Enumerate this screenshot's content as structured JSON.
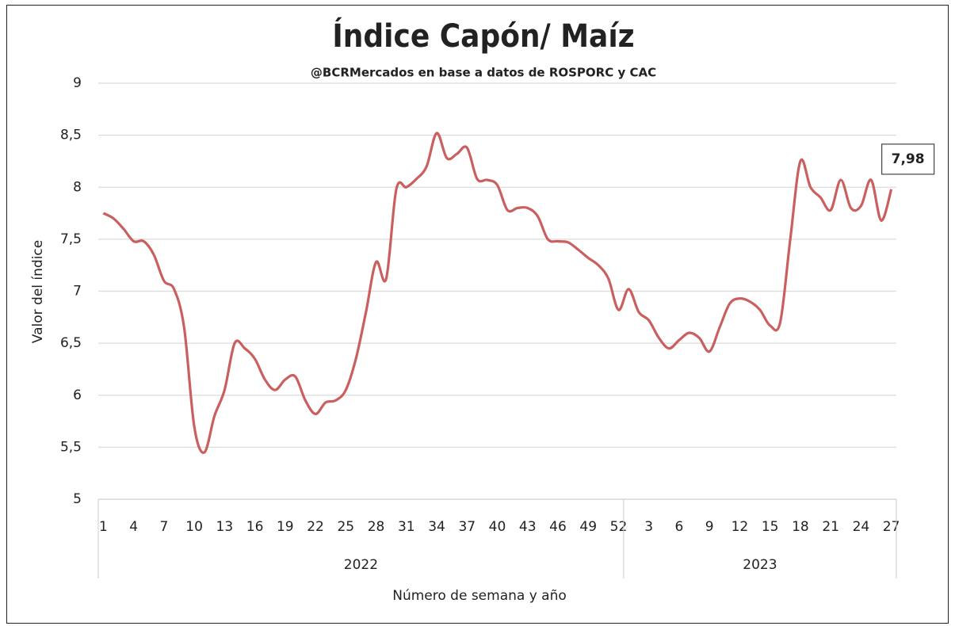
{
  "chart_data": {
    "type": "line",
    "title": "Índice Capón/ Maíz",
    "subtitle": "@BCRMercados  en base a datos de ROSPORC y CAC",
    "y_label": "Valor del índice",
    "x_label": "Número de semana y año",
    "categories": [
      "1",
      null,
      null,
      "4",
      null,
      null,
      "7",
      null,
      null,
      "10",
      null,
      null,
      "13",
      null,
      null,
      "16",
      null,
      null,
      "19",
      null,
      null,
      "22",
      null,
      null,
      "25",
      null,
      null,
      "28",
      null,
      null,
      "31",
      null,
      null,
      "34",
      null,
      null,
      "37",
      null,
      null,
      "40",
      null,
      null,
      "43",
      null,
      null,
      "46",
      null,
      null,
      "49",
      null,
      null,
      "52",
      null,
      null,
      "3",
      null,
      null,
      "6",
      null,
      null,
      "9",
      null,
      null,
      "12",
      null,
      null,
      "15",
      null,
      null,
      "18",
      null,
      null,
      "21",
      null,
      null,
      "24",
      null,
      null,
      "27"
    ],
    "groups": [
      {
        "name": "2022",
        "count": 52
      },
      {
        "name": "2023",
        "count": 27
      }
    ],
    "series": [
      {
        "name": "Índice Capón/ Maíz",
        "color": "#c9605f",
        "values": [
          7.75,
          7.7,
          7.6,
          7.48,
          7.48,
          7.35,
          7.1,
          7.02,
          6.65,
          5.7,
          5.45,
          5.8,
          6.05,
          6.5,
          6.45,
          6.35,
          6.15,
          6.05,
          6.15,
          6.18,
          5.95,
          5.82,
          5.93,
          5.95,
          6.05,
          6.35,
          6.8,
          7.28,
          7.12,
          7.98,
          8.0,
          8.08,
          8.2,
          8.52,
          8.28,
          8.32,
          8.38,
          8.08,
          8.07,
          8.02,
          7.78,
          7.8,
          7.8,
          7.72,
          7.5,
          7.48,
          7.47,
          7.4,
          7.32,
          7.25,
          7.12,
          6.82,
          7.02,
          6.8,
          6.72,
          6.55,
          6.45,
          6.53,
          6.6,
          6.55,
          6.42,
          6.65,
          6.88,
          6.93,
          6.9,
          6.82,
          6.67,
          6.7,
          7.5,
          8.25,
          8.0,
          7.9,
          7.78,
          8.07,
          7.8,
          7.82,
          8.07,
          7.68,
          7.98
        ],
        "value_labels": [
          null,
          null,
          null,
          null,
          null,
          null,
          null,
          null,
          null,
          null,
          null,
          null,
          null,
          null,
          null,
          null,
          null,
          null,
          null,
          null,
          null,
          null,
          null,
          null,
          null,
          null,
          null,
          null,
          null,
          null,
          null,
          null,
          null,
          null,
          null,
          null,
          null,
          null,
          null,
          null,
          null,
          null,
          null,
          null,
          null,
          null,
          null,
          null,
          null,
          null,
          null,
          null,
          null,
          null,
          null,
          null,
          null,
          null,
          null,
          null,
          null,
          null,
          null,
          null,
          null,
          null,
          null,
          null,
          null,
          null,
          null,
          null,
          null,
          null,
          null,
          null,
          null,
          null,
          "7,98"
        ]
      }
    ],
    "ylim": [
      5,
      9
    ],
    "yticks": [
      5,
      {
        "value": 5.5,
        "label": "5,5"
      },
      6,
      {
        "value": 6.5,
        "label": "6,5"
      },
      7,
      {
        "value": 7.5,
        "label": "7,5"
      },
      8,
      {
        "value": 8.5,
        "label": "8,5"
      },
      9
    ],
    "grid": true
  }
}
